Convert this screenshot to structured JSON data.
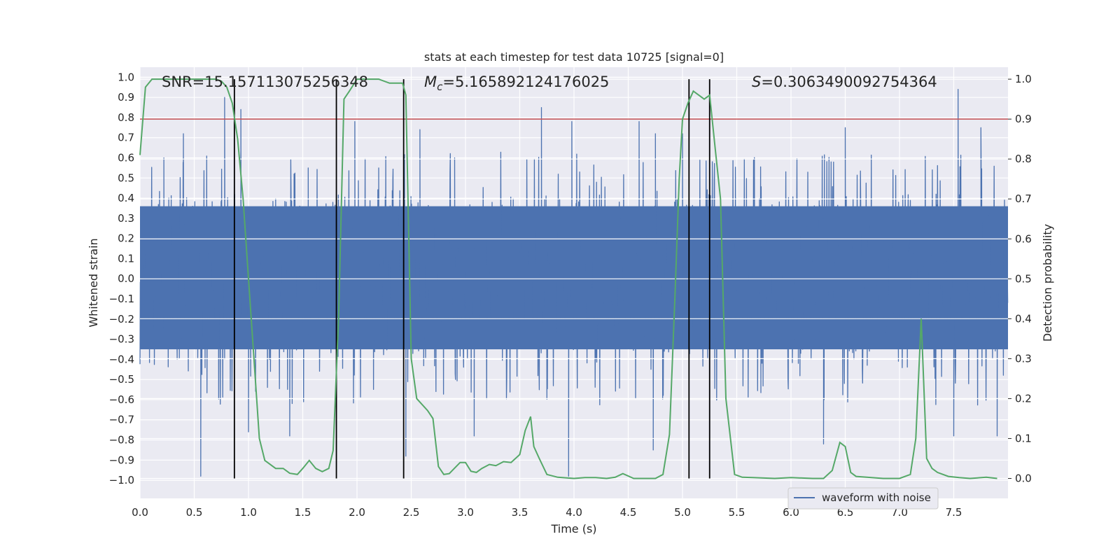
{
  "chart_data": {
    "type": "line",
    "title": "stats at each timestep for test data 10725 [signal=0]",
    "xlabel": "Time (s)",
    "ylabel_left": "Whitened strain",
    "ylabel_right": "Detection probability",
    "xlim": [
      0.0,
      8.0
    ],
    "ylim_left": [
      -1.09,
      1.05
    ],
    "ylim_right": [
      -0.05,
      1.03
    ],
    "xticks": [
      "0.0",
      "0.5",
      "1.0",
      "1.5",
      "2.0",
      "2.5",
      "3.0",
      "3.5",
      "4.0",
      "4.5",
      "5.0",
      "5.5",
      "6.0",
      "6.5",
      "7.0",
      "7.5"
    ],
    "xtick_values": [
      0,
      0.5,
      1,
      1.5,
      2,
      2.5,
      3,
      3.5,
      4,
      4.5,
      5,
      5.5,
      6,
      6.5,
      7,
      7.5
    ],
    "yticks_left": [
      "1.0",
      "0.9",
      "0.8",
      "0.7",
      "0.6",
      "0.5",
      "0.4",
      "0.3",
      "0.2",
      "0.1",
      "0.0",
      "−0.1",
      "−0.2",
      "−0.3",
      "−0.4",
      "−0.5",
      "−0.6",
      "−0.7",
      "−0.8",
      "−0.9",
      "−1.0"
    ],
    "ytick_values_left": [
      1.0,
      0.9,
      0.8,
      0.7,
      0.6,
      0.5,
      0.4,
      0.3,
      0.2,
      0.1,
      0.0,
      -0.1,
      -0.2,
      -0.3,
      -0.4,
      -0.5,
      -0.6,
      -0.7,
      -0.8,
      -0.9,
      -1.0
    ],
    "yticks_right": [
      "1.0",
      "0.9",
      "0.8",
      "0.7",
      "0.6",
      "0.5",
      "0.4",
      "0.3",
      "0.2",
      "0.1",
      "0.0"
    ],
    "ytick_values_right": [
      1.0,
      0.9,
      0.8,
      0.7,
      0.6,
      0.5,
      0.4,
      0.3,
      0.2,
      0.1,
      0.0
    ],
    "annotations": {
      "snr": "SNR=15.157113075256348",
      "mc_symbol": "M",
      "mc_sub": "c",
      "mc_value": "=5.165892124176025",
      "s_symbol": "S",
      "s_value": "=0.3063490092754364"
    },
    "legend": {
      "label": "waveform with noise",
      "location": "lower-right"
    },
    "threshold": {
      "value": 0.9,
      "axis": "right",
      "color": "#c44e52"
    },
    "vertical_lines": [
      0.87,
      1.81,
      2.43,
      5.06,
      5.25
    ],
    "waveform": {
      "name": "waveform with noise",
      "color": "#4c72b0",
      "duration": 8.0,
      "core_range": [
        -0.35,
        0.36
      ],
      "spikes": [
        {
          "t": 0.56,
          "v": -0.98
        },
        {
          "t": 0.78,
          "v": 0.9
        },
        {
          "t": 0.93,
          "v": 0.84
        },
        {
          "t": 1.0,
          "v": -0.76
        },
        {
          "t": 0.22,
          "v": 0.6
        },
        {
          "t": 0.4,
          "v": 0.72
        },
        {
          "t": 1.38,
          "v": -0.78
        },
        {
          "t": 1.42,
          "v": 0.52
        },
        {
          "t": 1.98,
          "v": 0.78
        },
        {
          "t": 2.2,
          "v": 0.55
        },
        {
          "t": 2.45,
          "v": -0.88
        },
        {
          "t": 2.58,
          "v": 0.74
        },
        {
          "t": 3.08,
          "v": -0.78
        },
        {
          "t": 3.7,
          "v": 0.85
        },
        {
          "t": 3.95,
          "v": -0.98
        },
        {
          "t": 3.98,
          "v": 0.78
        },
        {
          "t": 4.6,
          "v": 0.78
        },
        {
          "t": 4.73,
          "v": -0.85
        },
        {
          "t": 4.75,
          "v": 0.72
        },
        {
          "t": 5.0,
          "v": 0.72
        },
        {
          "t": 6.3,
          "v": -0.82
        },
        {
          "t": 6.5,
          "v": 0.75
        },
        {
          "t": 7.5,
          "v": -0.78
        },
        {
          "t": 7.54,
          "v": 0.94
        },
        {
          "t": 7.75,
          "v": 0.75
        },
        {
          "t": 7.9,
          "v": -0.78
        },
        {
          "t": 1.55,
          "v": 0.55
        },
        {
          "t": 2.9,
          "v": 0.6
        }
      ]
    },
    "detection_probability": {
      "name": "detection probability",
      "color": "#55a868",
      "t": [
        0.0,
        0.05,
        0.11,
        0.2,
        0.3,
        0.4,
        0.5,
        0.6,
        0.7,
        0.75,
        0.8,
        0.85,
        0.9,
        0.95,
        1.0,
        1.05,
        1.1,
        1.15,
        1.25,
        1.32,
        1.38,
        1.45,
        1.5,
        1.56,
        1.62,
        1.68,
        1.74,
        1.78,
        1.83,
        1.88,
        1.93,
        2.0,
        2.1,
        2.2,
        2.3,
        2.36,
        2.42,
        2.45,
        2.5,
        2.55,
        2.65,
        2.7,
        2.75,
        2.8,
        2.85,
        2.95,
        3.0,
        3.05,
        3.1,
        3.15,
        3.22,
        3.28,
        3.35,
        3.42,
        3.5,
        3.55,
        3.6,
        3.63,
        3.68,
        3.75,
        3.85,
        4.0,
        4.1,
        4.2,
        4.3,
        4.38,
        4.45,
        4.55,
        4.65,
        4.75,
        4.82,
        4.88,
        4.93,
        4.97,
        5.0,
        5.05,
        5.1,
        5.15,
        5.2,
        5.25,
        5.3,
        5.35,
        5.4,
        5.48,
        5.55,
        5.65,
        5.85,
        6.0,
        6.2,
        6.3,
        6.38,
        6.45,
        6.5,
        6.55,
        6.6,
        6.7,
        6.85,
        7.0,
        7.1,
        7.15,
        7.2,
        7.25,
        7.3,
        7.35,
        7.45,
        7.55,
        7.65,
        7.8,
        7.9
      ],
      "p": [
        0.81,
        0.98,
        1.0,
        1.0,
        1.0,
        1.0,
        1.0,
        1.0,
        1.0,
        0.995,
        0.98,
        0.94,
        0.85,
        0.7,
        0.5,
        0.3,
        0.1,
        0.045,
        0.025,
        0.025,
        0.013,
        0.01,
        0.025,
        0.045,
        0.025,
        0.017,
        0.025,
        0.07,
        0.4,
        0.95,
        0.97,
        1.0,
        1.0,
        1.0,
        0.99,
        0.99,
        0.99,
        0.96,
        0.3,
        0.2,
        0.17,
        0.15,
        0.03,
        0.01,
        0.012,
        0.04,
        0.04,
        0.018,
        0.015,
        0.025,
        0.035,
        0.032,
        0.042,
        0.04,
        0.06,
        0.12,
        0.155,
        0.08,
        0.05,
        0.01,
        0.003,
        0.0,
        0.002,
        0.002,
        0.0,
        0.003,
        0.012,
        0.0,
        0.0,
        0.0,
        0.01,
        0.11,
        0.45,
        0.75,
        0.9,
        0.94,
        0.97,
        0.96,
        0.95,
        0.96,
        0.83,
        0.7,
        0.2,
        0.01,
        0.003,
        0.002,
        0.0,
        0.002,
        0.0,
        0.0,
        0.02,
        0.09,
        0.08,
        0.015,
        0.005,
        0.003,
        0.0,
        0.0,
        0.01,
        0.1,
        0.4,
        0.05,
        0.025,
        0.015,
        0.005,
        0.002,
        0.0,
        0.003,
        0.0
      ]
    }
  }
}
